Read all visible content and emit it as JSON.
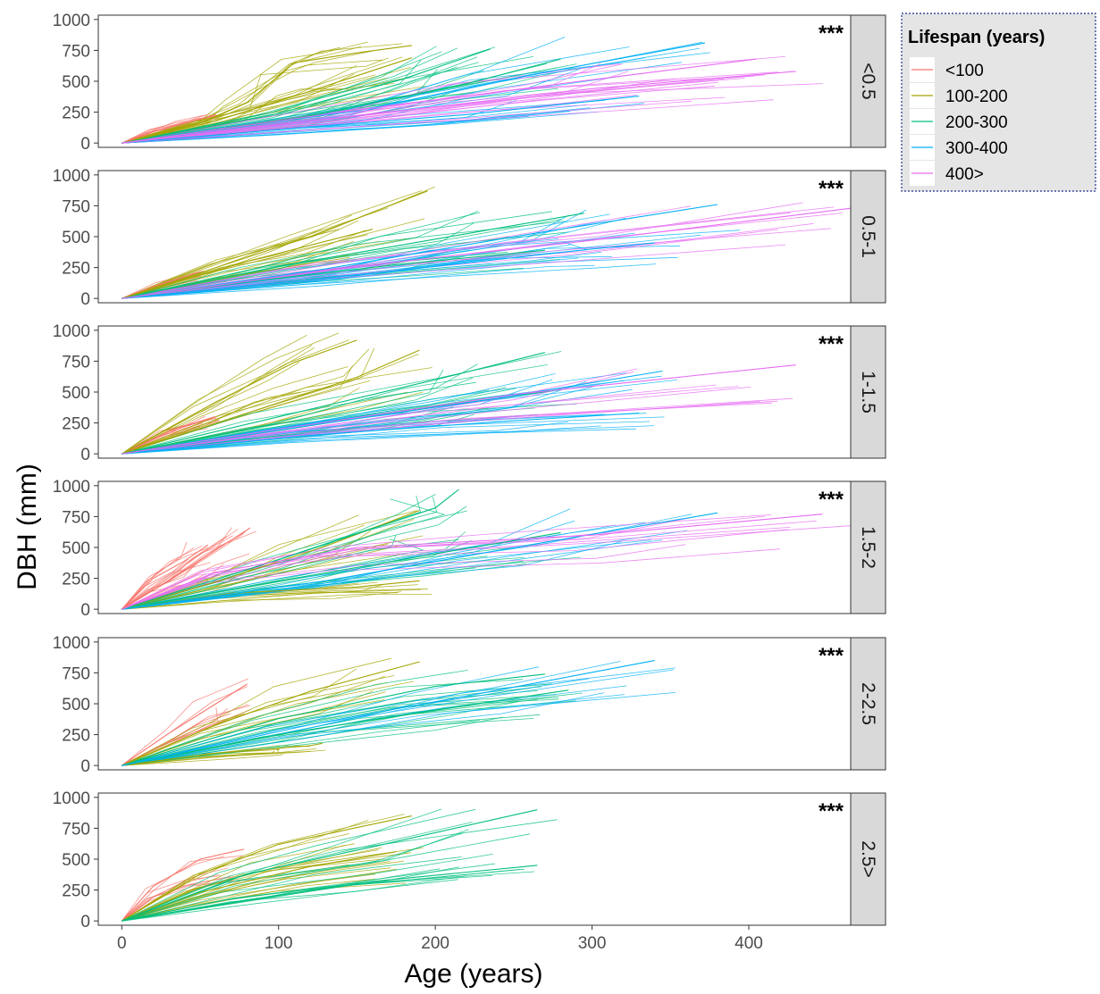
{
  "chart_data": {
    "type": "line",
    "xlabel": "Age (years)",
    "ylabel": "DBH (mm)",
    "xlim": [
      -15,
      465
    ],
    "ylim": [
      -35,
      1035
    ],
    "xticks": [
      0,
      100,
      200,
      300,
      400
    ],
    "yticks": [
      0,
      250,
      500,
      750,
      1000
    ],
    "grid": false,
    "legend": {
      "title": "Lifespan (years)",
      "placement": "top-right",
      "entries": [
        {
          "label": "<100",
          "color": "#F8766D"
        },
        {
          "label": "100-200",
          "color": "#A3A500"
        },
        {
          "label": "200-300",
          "color": "#00BF7D"
        },
        {
          "label": "300-400",
          "color": "#00B0F6"
        },
        {
          "label": "400>",
          "color": "#E76BF3"
        }
      ]
    },
    "panels": [
      {
        "strip": "<0.5",
        "annotation": "***",
        "series": [
          {
            "group": "<100",
            "x": [
              0,
              20,
              40,
              60
            ],
            "y": [
              0,
              90,
              160,
              230
            ]
          },
          {
            "group": "100-200",
            "x": [
              0,
              50,
              80,
              110,
              150,
              185
            ],
            "y": [
              0,
              160,
              330,
              650,
              730,
              790
            ]
          },
          {
            "group": "100-200",
            "x": [
              0,
              60,
              120,
              185
            ],
            "y": [
              0,
              180,
              420,
              690
            ]
          },
          {
            "group": "200-300",
            "x": [
              0,
              100,
              180,
              235
            ],
            "y": [
              0,
              240,
              520,
              760
            ]
          },
          {
            "group": "200-300",
            "x": [
              0,
              120,
              220,
              280
            ],
            "y": [
              0,
              220,
              480,
              680
            ]
          },
          {
            "group": "300-400",
            "x": [
              0,
              150,
              260,
              372
            ],
            "y": [
              0,
              260,
              550,
              810
            ]
          },
          {
            "group": "300-400",
            "x": [
              0,
              120,
              220,
              330
            ],
            "y": [
              0,
              130,
              230,
              380
            ]
          },
          {
            "group": "400>",
            "x": [
              0,
              150,
              300,
              430
            ],
            "y": [
              0,
              220,
              440,
              580
            ]
          },
          {
            "group": "400>",
            "x": [
              0,
              140,
              280,
              405
            ],
            "y": [
              0,
              250,
              480,
              680
            ]
          }
        ]
      },
      {
        "strip": "0.5-1",
        "annotation": "***",
        "series": [
          {
            "group": "<100",
            "x": [
              0,
              25,
              50
            ],
            "y": [
              0,
              120,
              210
            ]
          },
          {
            "group": "100-200",
            "x": [
              0,
              60,
              120,
              195
            ],
            "y": [
              0,
              250,
              500,
              870
            ]
          },
          {
            "group": "100-200",
            "x": [
              0,
              80,
              160
            ],
            "y": [
              0,
              300,
              560
            ]
          },
          {
            "group": "200-300",
            "x": [
              0,
              100,
              200,
              295
            ],
            "y": [
              0,
              260,
              480,
              690
            ]
          },
          {
            "group": "200-300",
            "x": [
              0,
              90,
              180,
              270
            ],
            "y": [
              0,
              150,
              280,
              390
            ]
          },
          {
            "group": "300-400",
            "x": [
              0,
              130,
              260,
              380
            ],
            "y": [
              0,
              240,
              520,
              760
            ]
          },
          {
            "group": "300-400",
            "x": [
              0,
              150,
              300,
              340
            ],
            "y": [
              0,
              190,
              400,
              450
            ]
          },
          {
            "group": "400>",
            "x": [
              0,
              150,
              300,
              465
            ],
            "y": [
              0,
              260,
              470,
              730
            ]
          }
        ]
      },
      {
        "strip": "1-1.5",
        "annotation": "***",
        "series": [
          {
            "group": "<100",
            "x": [
              0,
              30,
              60
            ],
            "y": [
              0,
              180,
              300
            ]
          },
          {
            "group": "100-200",
            "x": [
              0,
              60,
              110,
              150
            ],
            "y": [
              0,
              420,
              740,
              920
            ]
          },
          {
            "group": "100-200",
            "x": [
              0,
              80,
              150,
              190
            ],
            "y": [
              0,
              330,
              620,
              840
            ]
          },
          {
            "group": "200-300",
            "x": [
              0,
              100,
              200,
              270
            ],
            "y": [
              0,
              300,
              600,
              820
            ]
          },
          {
            "group": "200-300",
            "x": [
              0,
              100,
              200,
              280
            ],
            "y": [
              0,
              190,
              380,
              520
            ]
          },
          {
            "group": "300-400",
            "x": [
              0,
              120,
              240,
              345
            ],
            "y": [
              0,
              230,
              450,
              670
            ]
          },
          {
            "group": "300-400",
            "x": [
              0,
              120,
              240,
              330
            ],
            "y": [
              0,
              150,
              260,
              330
            ]
          },
          {
            "group": "400>",
            "x": [
              0,
              100,
              250,
              430
            ],
            "y": [
              0,
              200,
              480,
              720
            ]
          }
        ]
      },
      {
        "strip": "1.5-2",
        "annotation": "***",
        "series": [
          {
            "group": "<100",
            "x": [
              0,
              20,
              40,
              55
            ],
            "y": [
              0,
              250,
              390,
              520
            ]
          },
          {
            "group": "<100",
            "x": [
              0,
              30,
              60,
              82
            ],
            "y": [
              0,
              230,
              480,
              660
            ]
          },
          {
            "group": "100-200",
            "x": [
              0,
              60,
              130,
              190
            ],
            "y": [
              0,
              220,
              510,
              800
            ]
          },
          {
            "group": "100-200",
            "x": [
              0,
              70,
              150,
              190
            ],
            "y": [
              0,
              130,
              180,
              230
            ]
          },
          {
            "group": "200-300",
            "x": [
              0,
              100,
              200,
              215
            ],
            "y": [
              0,
              400,
              820,
              970
            ]
          },
          {
            "group": "200-300",
            "x": [
              0,
              110,
              210,
              280
            ],
            "y": [
              0,
              250,
              470,
              620
            ]
          },
          {
            "group": "300-400",
            "x": [
              0,
              130,
              260,
              380
            ],
            "y": [
              0,
              230,
              520,
              780
            ]
          },
          {
            "group": "400>",
            "x": [
              0,
              60,
              150,
              300,
              447
            ],
            "y": [
              0,
              300,
              500,
              600,
              770
            ]
          }
        ]
      },
      {
        "strip": "2-2.5",
        "annotation": "***",
        "series": [
          {
            "group": "<100",
            "x": [
              0,
              30,
              60,
              80
            ],
            "y": [
              0,
              260,
              500,
              660
            ]
          },
          {
            "group": "100-200",
            "x": [
              0,
              60,
              120,
              190
            ],
            "y": [
              0,
              330,
              600,
              840
            ]
          },
          {
            "group": "100-200",
            "x": [
              0,
              60,
              120,
              128
            ],
            "y": [
              0,
              100,
              160,
              180
            ]
          },
          {
            "group": "200-300",
            "x": [
              0,
              100,
              200,
              270
            ],
            "y": [
              0,
              380,
              640,
              740
            ]
          },
          {
            "group": "200-300",
            "x": [
              0,
              100,
              200,
              285
            ],
            "y": [
              0,
              250,
              450,
              610
            ]
          },
          {
            "group": "300-400",
            "x": [
              0,
              120,
              240,
              340
            ],
            "y": [
              0,
              330,
              610,
              850
            ]
          }
        ]
      },
      {
        "strip": "2.5>",
        "annotation": "***",
        "series": [
          {
            "group": "<100",
            "x": [
              0,
              20,
              50,
              78
            ],
            "y": [
              0,
              280,
              500,
              580
            ]
          },
          {
            "group": "100-200",
            "x": [
              0,
              50,
              100,
              185
            ],
            "y": [
              0,
              380,
              620,
              850
            ]
          },
          {
            "group": "100-200",
            "x": [
              0,
              50,
              120,
              175
            ],
            "y": [
              0,
              230,
              440,
              560
            ]
          },
          {
            "group": "200-300",
            "x": [
              0,
              80,
              160,
              265
            ],
            "y": [
              0,
              380,
              600,
              900
            ]
          },
          {
            "group": "200-300",
            "x": [
              0,
              80,
              160,
              265
            ],
            "y": [
              0,
              170,
              320,
              450
            ]
          }
        ]
      }
    ]
  }
}
